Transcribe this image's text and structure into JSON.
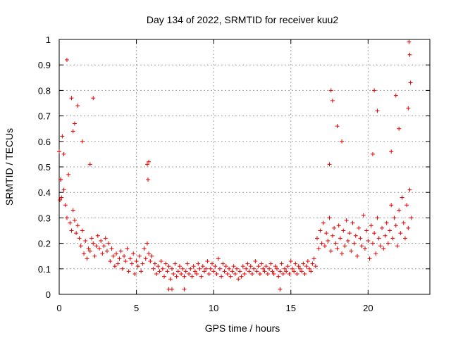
{
  "chart_data": {
    "type": "scatter",
    "title": "Day 134 of 2022, SRMTID for receiver kuu2",
    "xlabel": "GPS time / hours",
    "ylabel": "SRMTID / TECUs",
    "xlim": [
      0,
      24
    ],
    "ylim": [
      0,
      1
    ],
    "xticks": [
      "0",
      "5",
      "10",
      "15",
      "20"
    ],
    "yticks": [
      "0",
      "0.1",
      "0.2",
      "0.3",
      "0.4",
      "0.5",
      "0.6",
      "0.7",
      "0.8",
      "0.9",
      "1"
    ],
    "grid": true,
    "marker": "plus",
    "color": "#e60000",
    "series": [
      {
        "name": "SRMTID",
        "x": [
          0.0,
          0.1,
          0.15,
          0.2,
          0.3,
          0.4,
          0.5,
          0.6,
          0.7,
          0.8,
          0.9,
          1.0,
          1.1,
          1.2,
          1.3,
          1.4,
          1.5,
          1.6,
          1.7,
          1.8,
          1.9,
          2.0,
          2.1,
          2.2,
          2.3,
          2.4,
          2.5,
          2.6,
          2.7,
          2.8,
          2.9,
          3.0,
          3.1,
          3.2,
          3.3,
          3.4,
          3.5,
          3.6,
          3.7,
          3.8,
          3.9,
          4.0,
          4.1,
          4.2,
          4.3,
          4.4,
          4.5,
          4.6,
          4.7,
          4.8,
          4.9,
          5.0,
          5.1,
          5.2,
          5.3,
          5.4,
          5.5,
          5.6,
          5.7,
          5.8,
          5.9,
          6.0,
          6.1,
          6.2,
          6.3,
          6.4,
          6.5,
          6.6,
          6.7,
          6.8,
          6.9,
          7.0,
          7.1,
          7.2,
          7.3,
          7.4,
          7.5,
          7.6,
          7.7,
          7.8,
          7.9,
          8.0,
          8.1,
          8.2,
          8.3,
          8.4,
          8.5,
          8.6,
          8.7,
          8.8,
          8.9,
          9.0,
          9.1,
          9.2,
          9.3,
          9.4,
          9.5,
          9.6,
          9.7,
          9.8,
          9.9,
          10.0,
          10.1,
          10.2,
          10.3,
          10.4,
          10.5,
          10.6,
          10.7,
          10.8,
          10.9,
          11.0,
          11.1,
          11.2,
          11.3,
          11.4,
          11.5,
          11.6,
          11.7,
          11.8,
          11.9,
          12.0,
          12.1,
          12.2,
          12.3,
          12.4,
          12.5,
          12.6,
          12.7,
          12.8,
          12.9,
          13.0,
          13.1,
          13.2,
          13.3,
          13.4,
          13.5,
          13.6,
          13.7,
          13.8,
          13.9,
          14.0,
          14.1,
          14.2,
          14.3,
          14.4,
          14.5,
          14.6,
          14.7,
          14.8,
          14.9,
          15.0,
          15.1,
          15.2,
          15.3,
          15.4,
          15.5,
          15.6,
          15.7,
          15.8,
          15.9,
          16.0,
          16.1,
          16.2,
          16.3,
          16.4,
          16.5,
          16.6,
          16.7,
          16.8,
          16.9,
          17.0,
          17.1,
          17.2,
          17.3,
          17.4,
          17.5,
          17.6,
          17.7,
          17.8,
          17.9,
          18.0,
          18.1,
          18.2,
          18.3,
          18.4,
          18.5,
          18.6,
          18.7,
          18.8,
          18.9,
          19.0,
          19.1,
          19.2,
          19.3,
          19.4,
          19.5,
          19.6,
          19.7,
          19.8,
          19.9,
          20.0,
          20.1,
          20.2,
          20.3,
          20.4,
          20.5,
          20.6,
          20.7,
          20.8,
          20.9,
          21.0,
          21.1,
          21.2,
          21.3,
          21.4,
          21.5,
          21.6,
          21.7,
          21.8,
          21.9,
          22.0,
          22.1,
          22.2,
          22.3,
          22.4,
          22.5,
          22.6,
          22.7,
          22.8,
          0.05,
          0.1,
          0.3,
          0.5,
          0.8,
          1.0,
          1.5,
          2.0,
          2.2,
          0.9,
          1.2,
          5.7,
          5.8,
          5.75,
          17.5,
          17.6,
          17.7,
          18.0,
          18.3,
          20.3,
          20.4,
          20.6,
          21.5,
          21.8,
          22.0,
          22.6,
          22.65,
          22.7,
          22.75,
          7.1,
          7.3,
          8.1,
          14.3
        ],
        "y": [
          0.56,
          0.45,
          0.38,
          0.62,
          0.41,
          0.35,
          0.3,
          0.47,
          0.28,
          0.25,
          0.33,
          0.29,
          0.24,
          0.27,
          0.22,
          0.19,
          0.25,
          0.16,
          0.21,
          0.14,
          0.18,
          0.17,
          0.22,
          0.2,
          0.15,
          0.19,
          0.23,
          0.18,
          0.21,
          0.16,
          0.19,
          0.22,
          0.17,
          0.2,
          0.13,
          0.18,
          0.15,
          0.11,
          0.16,
          0.12,
          0.14,
          0.17,
          0.1,
          0.15,
          0.13,
          0.18,
          0.09,
          0.14,
          0.12,
          0.16,
          0.08,
          0.13,
          0.11,
          0.15,
          0.09,
          0.12,
          0.18,
          0.14,
          0.2,
          0.16,
          0.13,
          0.15,
          0.1,
          0.12,
          0.08,
          0.11,
          0.09,
          0.13,
          0.1,
          0.07,
          0.12,
          0.09,
          0.11,
          0.06,
          0.1,
          0.08,
          0.12,
          0.07,
          0.09,
          0.11,
          0.08,
          0.1,
          0.07,
          0.09,
          0.12,
          0.08,
          0.1,
          0.07,
          0.11,
          0.09,
          0.08,
          0.12,
          0.1,
          0.07,
          0.11,
          0.09,
          0.1,
          0.13,
          0.08,
          0.1,
          0.12,
          0.09,
          0.11,
          0.08,
          0.14,
          0.1,
          0.07,
          0.12,
          0.09,
          0.11,
          0.08,
          0.1,
          0.07,
          0.09,
          0.11,
          0.08,
          0.1,
          0.06,
          0.09,
          0.07,
          0.11,
          0.08,
          0.1,
          0.12,
          0.09,
          0.11,
          0.08,
          0.1,
          0.13,
          0.09,
          0.11,
          0.08,
          0.12,
          0.1,
          0.09,
          0.11,
          0.08,
          0.1,
          0.12,
          0.09,
          0.08,
          0.11,
          0.1,
          0.07,
          0.09,
          0.12,
          0.08,
          0.1,
          0.09,
          0.11,
          0.08,
          0.13,
          0.1,
          0.09,
          0.12,
          0.08,
          0.11,
          0.1,
          0.09,
          0.12,
          0.08,
          0.11,
          0.13,
          0.1,
          0.09,
          0.12,
          0.14,
          0.11,
          0.22,
          0.18,
          0.25,
          0.2,
          0.28,
          0.19,
          0.24,
          0.21,
          0.3,
          0.17,
          0.23,
          0.26,
          0.2,
          0.18,
          0.27,
          0.22,
          0.16,
          0.25,
          0.19,
          0.29,
          0.21,
          0.24,
          0.17,
          0.28,
          0.2,
          0.23,
          0.15,
          0.26,
          0.22,
          0.19,
          0.31,
          0.18,
          0.25,
          0.21,
          0.14,
          0.27,
          0.2,
          0.24,
          0.16,
          0.3,
          0.22,
          0.19,
          0.26,
          0.18,
          0.23,
          0.28,
          0.2,
          0.25,
          0.35,
          0.22,
          0.3,
          0.27,
          0.19,
          0.33,
          0.24,
          0.38,
          0.28,
          0.22,
          0.35,
          0.26,
          0.41,
          0.3,
          0.37,
          0.45,
          0.55,
          0.92,
          0.77,
          0.67,
          0.6,
          0.51,
          0.77,
          0.64,
          0.74,
          0.51,
          0.52,
          0.45,
          0.51,
          0.8,
          0.76,
          0.66,
          0.6,
          0.55,
          0.8,
          0.72,
          0.56,
          0.78,
          0.65,
          0.73,
          0.99,
          0.94,
          0.83,
          0.02,
          0.02,
          0.02,
          0.02
        ]
      }
    ]
  }
}
